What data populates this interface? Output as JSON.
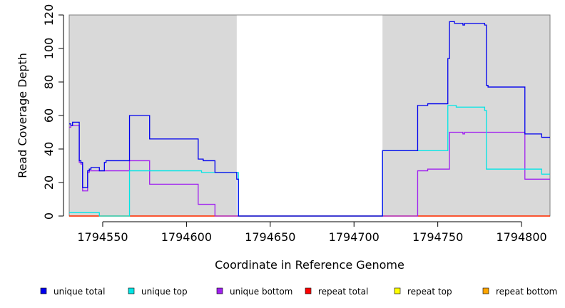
{
  "chart_data": {
    "type": "line",
    "title": "",
    "xlabel": "Coordinate in Reference Genome",
    "ylabel": "Read Coverage Depth",
    "xlim": [
      1794530,
      1794817
    ],
    "ylim": [
      0,
      120
    ],
    "xticks": [
      1794550,
      1794600,
      1794650,
      1794700,
      1794750,
      1794800
    ],
    "xtick_labels": [
      "1794550",
      "1794600",
      "1794650",
      "1794700",
      "1794750",
      "1794800"
    ],
    "yticks": [
      0,
      20,
      40,
      60,
      80,
      100,
      120
    ],
    "ytick_labels": [
      "0",
      "20",
      "40",
      "60",
      "80",
      "100",
      "120"
    ],
    "grid": false,
    "legend_position": "bottom",
    "shaded_regions": [
      {
        "x0": 1794530,
        "x1": 1794630,
        "color": "#d9d9d9"
      },
      {
        "x0": 1794717,
        "x1": 1794817,
        "color": "#d9d9d9"
      }
    ],
    "series": [
      {
        "name": "unique total",
        "color": "#0000ee",
        "x": [
          1794530,
          1794531,
          1794532,
          1794536,
          1794537,
          1794538,
          1794541,
          1794542,
          1794543,
          1794548,
          1794551,
          1794552,
          1794566,
          1794578,
          1794607,
          1794610,
          1794617,
          1794630,
          1794631,
          1794717,
          1794738,
          1794744,
          1794756,
          1794757,
          1794760,
          1794765,
          1794766,
          1794778,
          1794779,
          1794780,
          1794802,
          1794812,
          1794817
        ],
        "values": [
          55,
          54,
          56,
          33,
          32,
          17,
          27,
          28,
          29,
          27,
          32,
          33,
          60,
          46,
          34,
          33,
          26,
          22,
          0,
          39,
          66,
          67,
          94,
          116,
          115,
          114,
          115,
          114,
          78,
          77,
          49,
          47,
          47
        ]
      },
      {
        "name": "unique top",
        "color": "#00e5e5",
        "x": [
          1794530,
          1794548,
          1794566,
          1794609,
          1794630,
          1794631,
          1794717,
          1794738,
          1794756,
          1794761,
          1794778,
          1794779,
          1794812,
          1794817
        ],
        "values": [
          2,
          0,
          27,
          26,
          26,
          0,
          39,
          39,
          66,
          65,
          63,
          28,
          25,
          25
        ]
      },
      {
        "name": "unique bottom",
        "color": "#a020f0",
        "x": [
          1794530,
          1794531,
          1794536,
          1794537,
          1794538,
          1794541,
          1794542,
          1794543,
          1794566,
          1794578,
          1794607,
          1794617,
          1794738,
          1794744,
          1794757,
          1794765,
          1794766,
          1794802,
          1794817
        ],
        "values": [
          53,
          54,
          32,
          31,
          15,
          26,
          27,
          27,
          33,
          19,
          7,
          0,
          27,
          28,
          50,
          49,
          50,
          22,
          22
        ]
      },
      {
        "name": "repeat total",
        "color": "#ff0000",
        "x": [
          1794530,
          1794817
        ],
        "values": [
          0,
          0
        ]
      },
      {
        "name": "repeat top",
        "color": "#ffff00",
        "x": [
          1794530,
          1794817
        ],
        "values": [
          0,
          0
        ]
      },
      {
        "name": "repeat bottom",
        "color": "#ffa500",
        "x": [
          1794530,
          1794817
        ],
        "values": [
          0,
          0
        ]
      }
    ]
  }
}
